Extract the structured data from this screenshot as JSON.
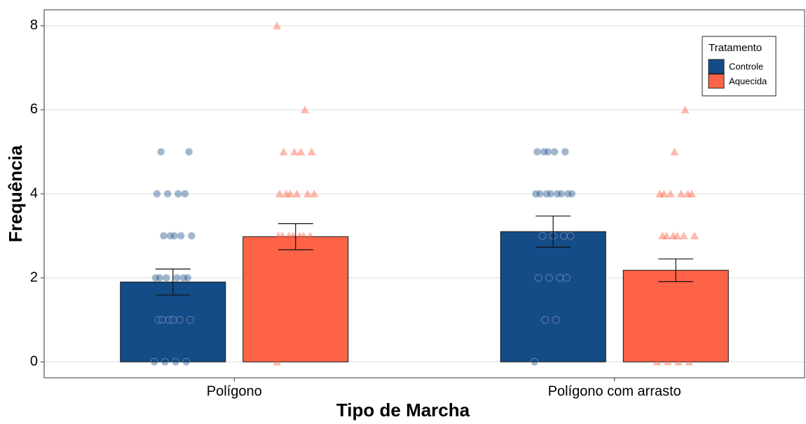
{
  "chart_data": {
    "type": "bar",
    "x_label": "Tipo de Marcha",
    "y_label": "Frequência",
    "categories": [
      "Polígono",
      "Polígono com arrasto"
    ],
    "series": [
      {
        "name": "Controle",
        "color": "#144c88",
        "marker": "circle",
        "values": [
          1.9,
          3.1
        ],
        "errors": [
          0.31,
          0.37
        ],
        "points": [
          [
            0,
            0,
            0,
            0,
            1,
            1,
            1,
            1,
            1,
            1,
            2,
            2,
            2,
            2,
            2,
            2,
            3,
            3,
            3,
            3,
            3,
            4,
            4,
            4,
            4,
            5,
            5
          ],
          [
            0,
            1,
            1,
            2,
            2,
            2,
            2,
            3,
            3,
            3,
            3,
            4,
            4,
            4,
            4,
            4,
            4,
            4,
            4,
            5,
            5,
            5,
            5,
            5
          ]
        ]
      },
      {
        "name": "Aquecida",
        "color": "#ff6347",
        "marker": "triangle",
        "values": [
          2.98,
          2.18
        ],
        "errors": [
          0.31,
          0.27
        ],
        "points": [
          [
            0,
            1,
            1,
            1,
            1,
            1,
            2,
            2,
            2,
            2,
            2,
            3,
            3,
            3,
            3,
            3,
            3,
            3,
            4,
            4,
            4,
            4,
            4,
            4,
            5,
            5,
            5,
            5,
            6,
            8
          ],
          [
            0,
            0,
            0,
            0,
            1,
            1,
            1,
            1,
            1,
            1,
            2,
            2,
            2,
            2,
            2,
            3,
            3,
            3,
            3,
            3,
            3,
            4,
            4,
            4,
            4,
            4,
            4,
            5,
            6
          ]
        ]
      }
    ],
    "ylim": [
      -0.38,
      8.38
    ],
    "yticks": [
      0,
      2,
      4,
      6,
      8
    ],
    "grid": true,
    "legend_title": "Tratamento",
    "legend_position": "top-right"
  }
}
